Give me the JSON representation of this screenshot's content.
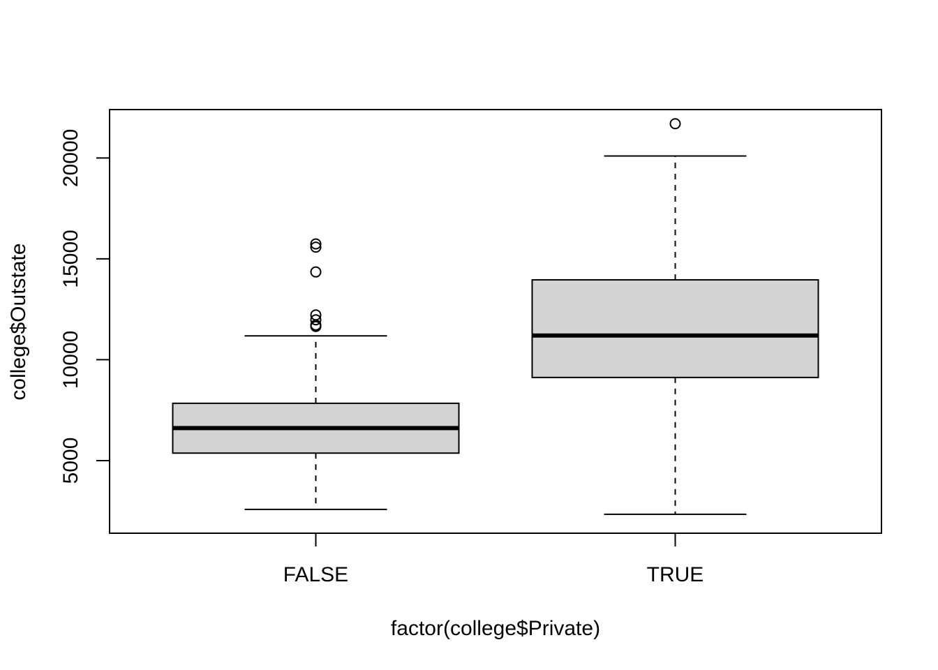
{
  "chart_data": {
    "type": "boxplot",
    "title": "",
    "xlabel": "factor(college$Private)",
    "ylabel": "college$Outstate",
    "ylim": [
      1400,
      22400
    ],
    "y_ticks": [
      5000,
      10000,
      15000,
      20000
    ],
    "y_tick_labels": [
      "5000",
      "10000",
      "15000",
      "20000"
    ],
    "categories": [
      "FALSE",
      "TRUE"
    ],
    "grid": false,
    "legend": "none",
    "colors": {
      "box_fill": "#d3d3d3",
      "stroke": "#000000",
      "background": "#ffffff"
    },
    "boxes": [
      {
        "category": "FALSE",
        "whisker_low": 2580,
        "q1": 5370,
        "median": 6610,
        "q3": 7840,
        "whisker_high": 11180,
        "outliers": [
          11650,
          11720,
          11980,
          12220,
          14350,
          15580,
          15740
        ]
      },
      {
        "category": "TRUE",
        "whisker_low": 2340,
        "q1": 9120,
        "median": 11200,
        "q3": 13960,
        "whisker_high": 20100,
        "outliers": [
          21700
        ]
      }
    ]
  }
}
